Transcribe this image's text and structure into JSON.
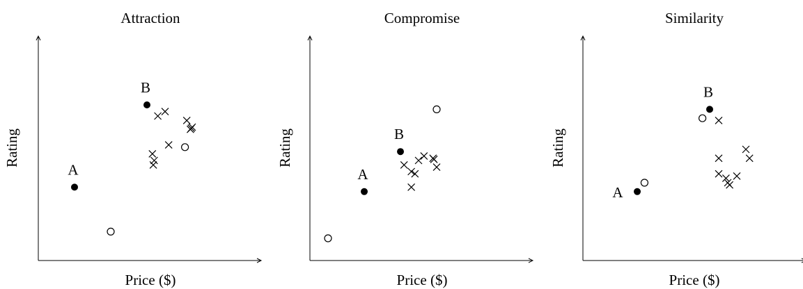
{
  "chart_data": [
    {
      "type": "scatter",
      "title": "Attraction",
      "xlabel": "Price ($)",
      "ylabel": "Rating",
      "grid": false,
      "legend": "none",
      "labeled_points": [
        {
          "label": "A",
          "x": 2.0,
          "y": 3.3
        },
        {
          "label": "B",
          "x": 6.0,
          "y": 7.0
        }
      ],
      "open_points": [
        {
          "x": 4.0,
          "y": 1.3
        },
        {
          "x": 8.1,
          "y": 5.1
        }
      ],
      "cross_points": [
        {
          "x": 6.6,
          "y": 6.5
        },
        {
          "x": 7.0,
          "y": 6.7
        },
        {
          "x": 8.2,
          "y": 6.3
        },
        {
          "x": 8.5,
          "y": 6.0
        },
        {
          "x": 8.4,
          "y": 5.9
        },
        {
          "x": 8.45,
          "y": 5.95
        },
        {
          "x": 7.2,
          "y": 5.2
        },
        {
          "x": 6.3,
          "y": 4.8
        },
        {
          "x": 6.4,
          "y": 4.5
        },
        {
          "x": 6.35,
          "y": 4.3
        }
      ]
    },
    {
      "type": "scatter",
      "title": "Compromise",
      "xlabel": "Price ($)",
      "ylabel": "Rating",
      "grid": false,
      "legend": "none",
      "labeled_points": [
        {
          "label": "A",
          "x": 3.0,
          "y": 3.1
        },
        {
          "label": "B",
          "x": 5.0,
          "y": 4.9
        }
      ],
      "open_points": [
        {
          "x": 1.0,
          "y": 1.0
        },
        {
          "x": 7.0,
          "y": 6.8
        }
      ],
      "cross_points": [
        {
          "x": 5.2,
          "y": 4.3
        },
        {
          "x": 5.6,
          "y": 4.0
        },
        {
          "x": 5.8,
          "y": 3.9
        },
        {
          "x": 6.0,
          "y": 4.5
        },
        {
          "x": 6.3,
          "y": 4.7
        },
        {
          "x": 6.8,
          "y": 4.6
        },
        {
          "x": 6.85,
          "y": 4.55
        },
        {
          "x": 7.0,
          "y": 4.2
        },
        {
          "x": 5.6,
          "y": 3.3
        }
      ]
    },
    {
      "type": "scatter",
      "title": "Similarity",
      "xlabel": "Price ($)",
      "ylabel": "Rating",
      "grid": false,
      "legend": "none",
      "labeled_points": [
        {
          "label": "A",
          "x": 3.0,
          "y": 3.1
        },
        {
          "label": "B",
          "x": 7.0,
          "y": 6.8
        }
      ],
      "open_points": [
        {
          "x": 3.4,
          "y": 3.5
        },
        {
          "x": 6.6,
          "y": 6.4
        }
      ],
      "cross_points": [
        {
          "x": 7.5,
          "y": 6.3
        },
        {
          "x": 9.0,
          "y": 5.0
        },
        {
          "x": 9.2,
          "y": 4.6
        },
        {
          "x": 7.5,
          "y": 4.6
        },
        {
          "x": 7.5,
          "y": 3.9
        },
        {
          "x": 7.9,
          "y": 3.7
        },
        {
          "x": 8.0,
          "y": 3.5
        },
        {
          "x": 8.1,
          "y": 3.4
        },
        {
          "x": 8.5,
          "y": 3.8
        }
      ]
    }
  ]
}
